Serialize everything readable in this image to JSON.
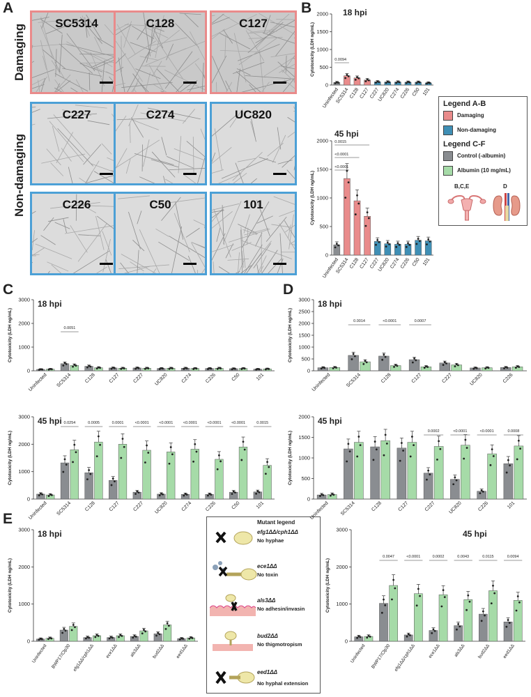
{
  "panels": {
    "a": "A",
    "b": "B",
    "c": "C",
    "d": "D",
    "e": "E"
  },
  "panel_a": {
    "row_damaging": "Damaging",
    "row_non_damaging": "Non-damaging",
    "strains": [
      "SC5314",
      "C128",
      "C127",
      "C227",
      "C274",
      "UC820",
      "C226",
      "C50",
      "101"
    ]
  },
  "legend": {
    "title_ab": "Legend A-B",
    "damaging": "Damaging",
    "non_damaging": "Non-damaging",
    "title_cf": "Legend C-F",
    "control": "Control (-albumin)",
    "albumin": "Albumin (10 mg/mL)",
    "organ_bce": "B,C,E",
    "organ_d": "D",
    "colors": {
      "damaging": "#e98b8b",
      "non_damaging": "#3f8fb5",
      "control": "#8a8d91",
      "albumin": "#a6dba8"
    }
  },
  "mutant_legend": {
    "title": "Mutant legend",
    "items": [
      {
        "gene": "efg1ΔΔ/cph1ΔΔ",
        "desc": "No hyphae",
        "icon": "hypha-cross-icon"
      },
      {
        "gene": "ece1ΔΔ",
        "desc": "No toxin",
        "icon": "toxin-cross-icon"
      },
      {
        "gene": "als3ΔΔ",
        "desc": "No adhesin/invasin",
        "icon": "adhesin-cross-icon"
      },
      {
        "gene": "bud2ΔΔ",
        "desc": "No thigmotropism",
        "icon": "thigmotropism-icon"
      },
      {
        "gene": "eed1ΔΔ",
        "desc": "No hyphal extension",
        "icon": "extension-cross-icon"
      }
    ]
  },
  "chart_data": [
    {
      "id": "B18",
      "type": "bar",
      "title": "18 hpi",
      "ylabel": "Cytotoxicity (LDH ng/mL)",
      "ylim": [
        0,
        2000
      ],
      "yticks": [
        0,
        500,
        1000,
        1500,
        2000
      ],
      "categories": [
        "Uninfected",
        "SC5314",
        "C128",
        "C127",
        "C227",
        "UC820",
        "C274",
        "C226",
        "C50",
        "101"
      ],
      "values": [
        70,
        260,
        200,
        140,
        90,
        85,
        85,
        80,
        80,
        60
      ],
      "annotations": [
        {
          "text": "0.0094",
          "from": 0,
          "to": 1
        }
      ]
    },
    {
      "id": "B45",
      "type": "bar",
      "title": "45 hpi",
      "ylabel": "Cytotoxicity (LDH ng/mL)",
      "ylim": [
        0,
        2000
      ],
      "yticks": [
        0,
        500,
        1000,
        1500,
        2000
      ],
      "categories": [
        "Uninfected",
        "SC5314",
        "C128",
        "C127",
        "C227",
        "UC820",
        "C274",
        "C226",
        "C50",
        "101"
      ],
      "values": [
        180,
        1340,
        950,
        680,
        240,
        200,
        190,
        190,
        260,
        250
      ],
      "annotations": [
        {
          "text": "0.0015",
          "from": 0,
          "to": 3
        },
        {
          "text": "<0.0001",
          "from": 0,
          "to": 2
        },
        {
          "text": "<0.0001",
          "from": 0,
          "to": 1
        }
      ]
    },
    {
      "id": "C18",
      "type": "bar",
      "title": "18 hpi",
      "ylabel": "Cytotoxicity (LDH ng/mL)",
      "ylim": [
        0,
        3000
      ],
      "yticks": [
        0,
        1000,
        2000,
        3000
      ],
      "categories": [
        "Uninfected",
        "SC5314",
        "C128",
        "C127",
        "C227",
        "UC820",
        "C274",
        "C226",
        "C50",
        "101"
      ],
      "series": [
        {
          "values": [
            60,
            300,
            190,
            120,
            120,
            100,
            110,
            100,
            90,
            70
          ]
        },
        {
          "values": [
            70,
            230,
            130,
            110,
            110,
            110,
            100,
            110,
            100,
            80
          ]
        }
      ],
      "annotations": [
        {
          "text": "0.0051",
          "group": 1
        }
      ]
    },
    {
      "id": "C45",
      "type": "bar",
      "title": "45 hpi",
      "ylabel": "Cytotoxicity (LDH ng/mL)",
      "ylim": [
        0,
        3000
      ],
      "yticks": [
        0,
        1000,
        2000,
        3000
      ],
      "categories": [
        "Uninfected",
        "SC5314",
        "C128",
        "C127",
        "C227",
        "UC820",
        "C274",
        "C226",
        "C50",
        "101"
      ],
      "series": [
        {
          "values": [
            180,
            1320,
            960,
            680,
            250,
            180,
            170,
            170,
            250,
            260
          ]
        },
        {
          "values": [
            150,
            1800,
            2080,
            2000,
            1780,
            1720,
            1820,
            1450,
            1900,
            1230
          ]
        }
      ],
      "annotations": [
        {
          "text": "0.0254",
          "group": 1
        },
        {
          "text": "0.0005",
          "group": 2
        },
        {
          "text": "0.0001",
          "group": 3
        },
        {
          "text": "<0.0001",
          "group": 4
        },
        {
          "text": "<0.0001",
          "group": 5
        },
        {
          "text": "<0.0001",
          "group": 6
        },
        {
          "text": "<0.0001",
          "group": 7
        },
        {
          "text": "<0.0001",
          "group": 8
        },
        {
          "text": "0.0015",
          "group": 9
        }
      ]
    },
    {
      "id": "D18",
      "type": "bar",
      "title": "18 hpi",
      "ylabel": "Cytotoxicity (LDH ng/mL)",
      "ylim": [
        0,
        3000
      ],
      "yticks": [
        0,
        500,
        1000,
        1500,
        2000,
        2500,
        3000
      ],
      "categories": [
        "Uninfected",
        "SC5314",
        "C128",
        "C127",
        "C227",
        "UC820",
        "C226"
      ],
      "series": [
        {
          "values": [
            130,
            650,
            620,
            470,
            330,
            120,
            140
          ]
        },
        {
          "values": [
            140,
            380,
            220,
            170,
            250,
            130,
            170
          ]
        }
      ],
      "annotations": [
        {
          "text": "0.0014",
          "group": 1
        },
        {
          "text": "<0.0001",
          "group": 2
        },
        {
          "text": "0.0007",
          "group": 3
        }
      ]
    },
    {
      "id": "D45",
      "type": "bar",
      "title": "45 hpi",
      "ylabel": "Cytotoxicity (LDH ng/mL)",
      "ylim": [
        0,
        2000
      ],
      "yticks": [
        0,
        500,
        1000,
        1500,
        2000
      ],
      "categories": [
        "Uninfected",
        "SC5314",
        "C128",
        "C127",
        "C227",
        "UC820",
        "C226",
        "101"
      ],
      "series": [
        {
          "values": [
            100,
            1220,
            1270,
            1240,
            630,
            480,
            190,
            860
          ]
        },
        {
          "values": [
            110,
            1380,
            1420,
            1380,
            1280,
            1310,
            1100,
            1290
          ]
        }
      ],
      "annotations": [
        {
          "text": "0.0002",
          "group": 4
        },
        {
          "text": "<0.0001",
          "group": 5
        },
        {
          "text": "<0.0001",
          "group": 6
        },
        {
          "text": "0.0008",
          "group": 7
        }
      ]
    },
    {
      "id": "E18",
      "type": "bar",
      "title": "18 hpi",
      "ylabel": "Cytotoxicity (LDH ng/mL)",
      "ylim": [
        0,
        3000
      ],
      "yticks": [
        0,
        1000,
        2000,
        3000
      ],
      "categories": [
        "Uninfected",
        "BWP17/Clp30",
        "efg1ΔΔ/cph1ΔΔ",
        "ece1ΔΔ",
        "als3ΔΔ",
        "bud2ΔΔ",
        "eed1ΔΔ"
      ],
      "series": [
        {
          "values": [
            60,
            300,
            100,
            100,
            130,
            200,
            70
          ]
        },
        {
          "values": [
            80,
            400,
            150,
            150,
            280,
            440,
            90
          ]
        }
      ]
    },
    {
      "id": "E45",
      "type": "bar",
      "title": "45 hpi",
      "ylabel": "Cytotoxicity (LDH ng/mL)",
      "ylim": [
        0,
        3000
      ],
      "yticks": [
        0,
        1000,
        2000,
        3000
      ],
      "categories": [
        "Uninfected",
        "BWP17/Clp30",
        "efg1ΔΔ/cph1ΔΔ",
        "ece1ΔΔ",
        "als3ΔΔ",
        "bud2ΔΔ",
        "eed1ΔΔ"
      ],
      "series": [
        {
          "values": [
            120,
            1020,
            170,
            290,
            420,
            730,
            520
          ]
        },
        {
          "values": [
            130,
            1500,
            1280,
            1250,
            1120,
            1360,
            1100
          ]
        }
      ],
      "annotations": [
        {
          "text": "0.0047",
          "group": 1
        },
        {
          "text": "<0.0001",
          "group": 2
        },
        {
          "text": "0.0002",
          "group": 3
        },
        {
          "text": "0.0043",
          "group": 4
        },
        {
          "text": "0.0115",
          "group": 5
        },
        {
          "text": "0.0094",
          "group": 6
        }
      ]
    }
  ]
}
